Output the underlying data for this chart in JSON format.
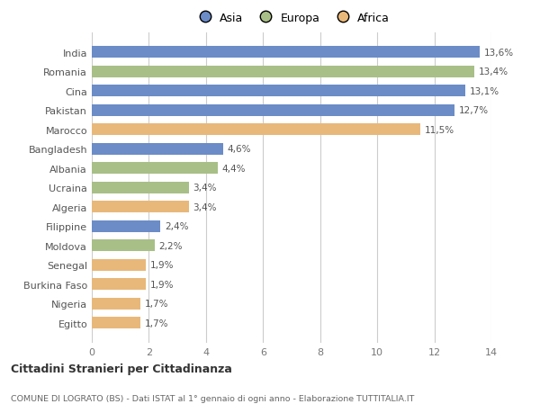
{
  "categories": [
    "India",
    "Romania",
    "Cina",
    "Pakistan",
    "Marocco",
    "Bangladesh",
    "Albania",
    "Ucraina",
    "Algeria",
    "Filippine",
    "Moldova",
    "Senegal",
    "Burkina Faso",
    "Nigeria",
    "Egitto"
  ],
  "values": [
    13.6,
    13.4,
    13.1,
    12.7,
    11.5,
    4.6,
    4.4,
    3.4,
    3.4,
    2.4,
    2.2,
    1.9,
    1.9,
    1.7,
    1.7
  ],
  "labels": [
    "13,6%",
    "13,4%",
    "13,1%",
    "12,7%",
    "11,5%",
    "4,6%",
    "4,4%",
    "3,4%",
    "3,4%",
    "2,4%",
    "2,2%",
    "1,9%",
    "1,9%",
    "1,7%",
    "1,7%"
  ],
  "continents": [
    "Asia",
    "Europa",
    "Asia",
    "Asia",
    "Africa",
    "Asia",
    "Europa",
    "Europa",
    "Africa",
    "Asia",
    "Europa",
    "Africa",
    "Africa",
    "Africa",
    "Africa"
  ],
  "colors": {
    "Asia": "#6b8cc7",
    "Europa": "#a8bf87",
    "Africa": "#e8b87a"
  },
  "legend_labels": [
    "Asia",
    "Europa",
    "Africa"
  ],
  "legend_colors": [
    "#6b8cc7",
    "#a8bf87",
    "#e8b87a"
  ],
  "title": "Cittadini Stranieri per Cittadinanza",
  "subtitle": "COMUNE DI LOGRATO (BS) - Dati ISTAT al 1° gennaio di ogni anno - Elaborazione TUTTITALIA.IT",
  "xlim": [
    0,
    14
  ],
  "xticks": [
    0,
    2,
    4,
    6,
    8,
    10,
    12,
    14
  ],
  "background_color": "#ffffff",
  "bar_height": 0.6
}
